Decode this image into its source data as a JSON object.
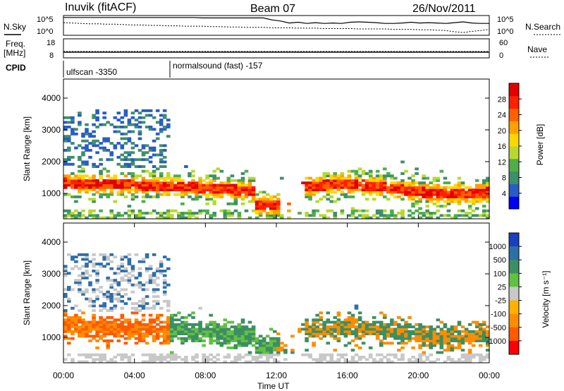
{
  "header": {
    "station": "Inuvik (fitACF)",
    "beam": "Beam 07",
    "date": "26/Nov/2011"
  },
  "chart_data": [
    {
      "type": "line",
      "panel": "noise",
      "left_label": "N.Sky",
      "right_label": "N.Search",
      "left_ticks": [
        "10^5",
        "10^0"
      ],
      "right_ticks": [
        "10^5",
        "10^0"
      ],
      "series": [
        {
          "values": [
            4.5,
            4.5,
            4.5,
            4.5,
            4.5,
            4.5,
            4.5,
            4.5,
            4.5,
            4.5,
            4.5,
            4.5,
            4.5,
            4.5,
            4.5,
            4.5,
            4.4,
            4.4,
            4.4,
            4.4,
            4.4,
            4.4,
            4.4,
            4.4,
            3.9,
            3.6,
            3.1,
            3.3,
            3.0,
            3.2,
            3.0,
            3.1,
            3.0,
            3.3,
            3.4,
            3.3,
            3.2,
            3.0,
            3.0,
            3.1,
            3.3,
            3.1,
            3.2,
            3.1,
            3.0,
            3.2,
            3.4,
            3.1,
            3.0,
            3.0
          ]
        },
        {
          "values": [
            3.2,
            3.1,
            3.0,
            2.9,
            2.9,
            2.8,
            2.8,
            2.7,
            2.6,
            2.6,
            2.5,
            2.5,
            2.4,
            2.4,
            2.3,
            2.3,
            2.3,
            2.2,
            2.2,
            2.1,
            2.1,
            2.0,
            2.0,
            2.0,
            1.9,
            1.9,
            1.9,
            1.8,
            1.8,
            1.8,
            1.7,
            1.7,
            1.7,
            1.7,
            1.6,
            1.6,
            1.6,
            1.6,
            1.5,
            1.5,
            1.5,
            1.4,
            1.4,
            1.3,
            1.2,
            0.9,
            0.7,
            1.0,
            1.2,
            1.5
          ]
        }
      ]
    },
    {
      "type": "line",
      "panel": "frequency",
      "left_label": "Freq.",
      "left_unit": "[MHz]",
      "left_ticks": [
        "18",
        "8"
      ],
      "right_label": "Nave",
      "right_ticks": [
        "60",
        "0"
      ],
      "series": [
        {
          "values": [
            11,
            11,
            11,
            11,
            11,
            11,
            11,
            11,
            11,
            11,
            11,
            11,
            11,
            11,
            11,
            11,
            11,
            11,
            11,
            11,
            11,
            11,
            11,
            11,
            11,
            11,
            11,
            11,
            11,
            11,
            11,
            11,
            11,
            11,
            11,
            11,
            11,
            11,
            11,
            11,
            11,
            11,
            11,
            11,
            11,
            11,
            11,
            11,
            11,
            11
          ]
        },
        {
          "values": [
            20,
            20,
            20,
            20,
            20,
            20,
            20,
            20,
            20,
            20,
            20,
            20,
            20,
            20,
            20,
            20,
            20,
            20,
            20,
            20,
            20,
            20,
            20,
            20,
            20,
            20,
            20,
            20,
            20,
            20,
            20,
            20,
            20,
            20,
            20,
            20,
            20,
            20,
            20,
            20,
            20,
            20,
            20,
            20,
            20,
            20,
            20,
            20,
            20,
            20
          ]
        }
      ]
    },
    {
      "type": "heatmap",
      "panel": "power",
      "ylabel": "Slant Range [km]",
      "y_ticks": [
        "1000",
        "2000",
        "3000",
        "4000"
      ],
      "ylim": [
        200,
        4600
      ],
      "colorbar_label": "Power [dB]",
      "colorbar_ticks": [
        "4",
        "8",
        "12",
        "16",
        "20",
        "24",
        "28"
      ],
      "colorbar_colors": [
        "#0000ff",
        "#2a5cc8",
        "#3f8f6a",
        "#4fae4a",
        "#b7d92f",
        "#ffd700",
        "#ffa000",
        "#ff6000",
        "#ff2000",
        "#e00000"
      ]
    },
    {
      "type": "heatmap",
      "panel": "velocity",
      "ylabel": "Slant Range [km]",
      "y_ticks": [
        "1000",
        "2000",
        "3000",
        "4000"
      ],
      "ylim": [
        200,
        4600
      ],
      "colorbar_label": "Velocity [m s⁻¹]",
      "colorbar_ticks": [
        "1000",
        "500",
        "100",
        "25",
        "-25",
        "-100",
        "-500",
        "-1000"
      ],
      "colorbar_colors": [
        "#1a3fbf",
        "#2f6fa8",
        "#3c8f62",
        "#62c043",
        "#c8c8c8",
        "#ffb000",
        "#ff8c00",
        "#ff5a00",
        "#ff0000"
      ],
      "xlabel": "Time UT",
      "x_ticks": [
        "00:00",
        "04:00",
        "08:00",
        "12:00",
        "16:00",
        "20:00",
        "00:00"
      ]
    }
  ],
  "cpid": {
    "label": "CPID",
    "modes": [
      "ulfscan -3350",
      "normalsound (fast) -157"
    ]
  }
}
